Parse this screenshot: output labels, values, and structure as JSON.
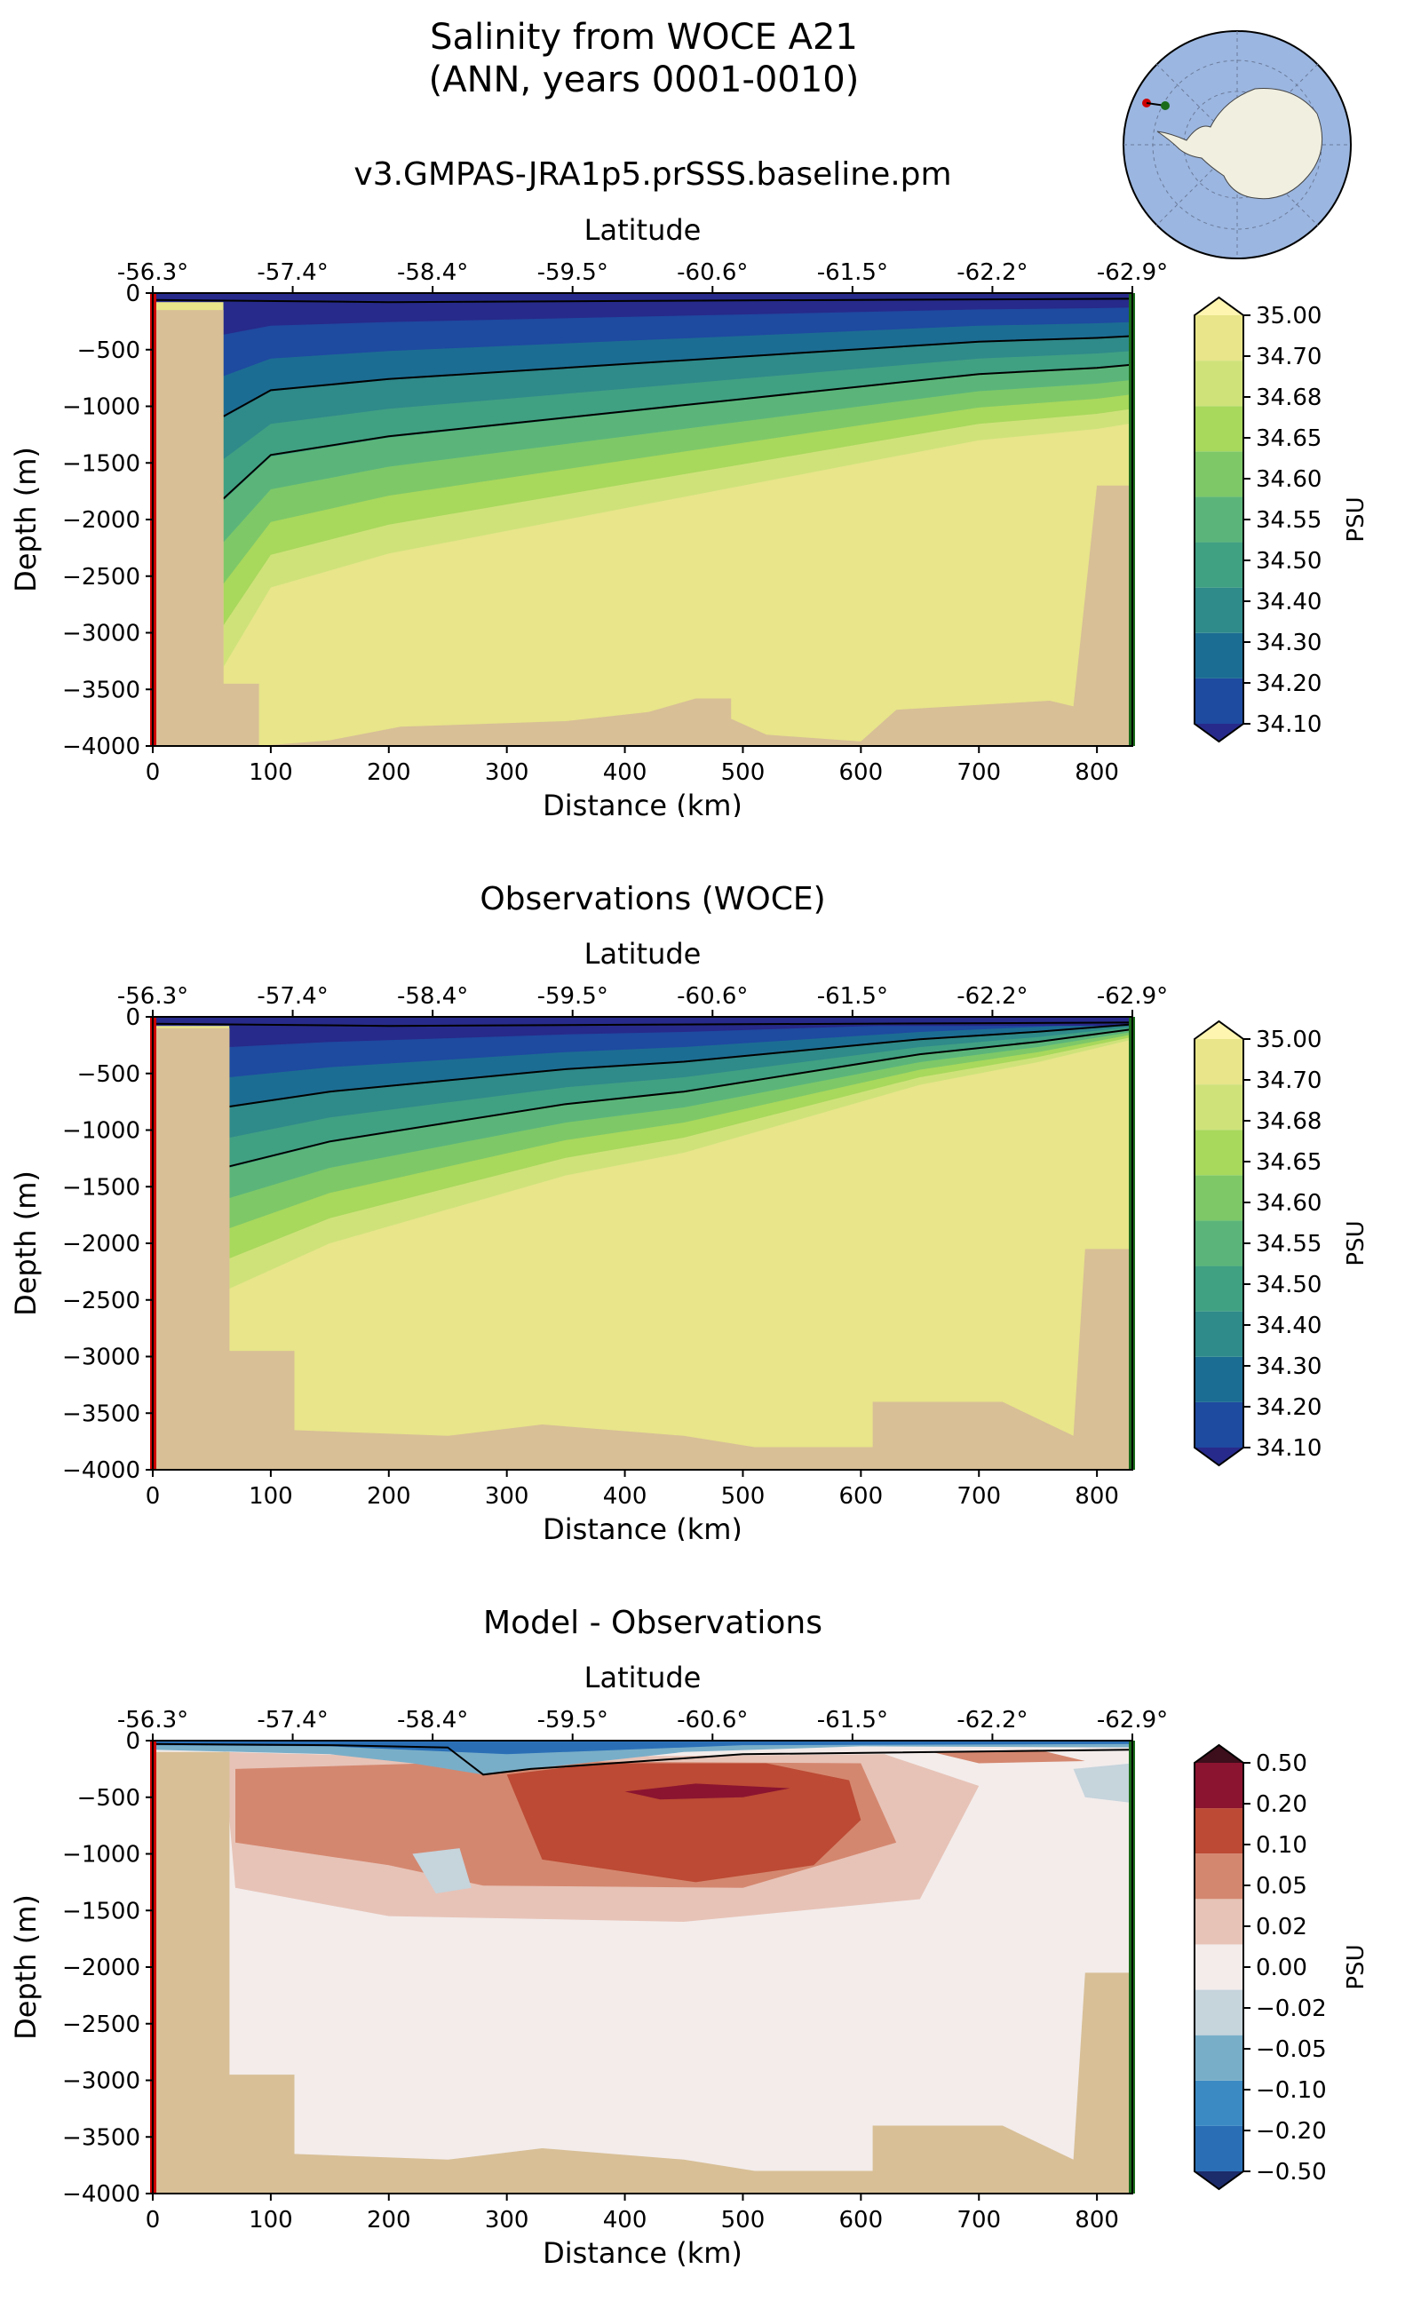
{
  "figure": {
    "title_line1": "Salinity from WOCE A21",
    "title_line2": "(ANN, years 0001-0010)"
  },
  "colors": {
    "land": "#d8bf96",
    "red_marker": "#cc0000",
    "green_marker": "#1a6b1a",
    "globe_ocean": "#9bb6e0",
    "globe_land": "#f0efe0"
  },
  "axes_common": {
    "top_label": "Latitude",
    "lat_ticks": [
      "-56.3°",
      "-57.4°",
      "-58.4°",
      "-59.5°",
      "-60.6°",
      "-61.5°",
      "-62.2°",
      "-62.9°"
    ],
    "x_ticks": [
      "0",
      "100",
      "200",
      "300",
      "400",
      "500",
      "600",
      "700",
      "800"
    ],
    "y_ticks": [
      "0",
      "−500",
      "−1000",
      "−1500",
      "−2000",
      "−2500",
      "−3000",
      "−3500",
      "−4000"
    ],
    "xlabel": "Distance (km)",
    "ylabel": "Depth (m)",
    "xlim": [
      0,
      830
    ],
    "ylim": [
      -4000,
      0
    ]
  },
  "chart_data": [
    {
      "type": "contourf",
      "title": "v3.GMPAS-JRA1p5.prSSS.baseline.pm",
      "colorbar_label": "PSU",
      "colorbar_ticks": [
        "35.00",
        "34.70",
        "34.68",
        "34.65",
        "34.60",
        "34.55",
        "34.50",
        "34.40",
        "34.30",
        "34.20",
        "34.10"
      ],
      "colorbar_colors": [
        "#272a8a",
        "#1e4aa0",
        "#1c6d93",
        "#2f8a8a",
        "#40a082",
        "#5bb57a",
        "#7ec868",
        "#a8d85c",
        "#cfe27a",
        "#e8e58a",
        "#fdf5b0"
      ],
      "contour_levels": [
        34.3,
        34.5
      ],
      "bathymetry_km_depth": [
        [
          0,
          -4000
        ],
        [
          0,
          -150
        ],
        [
          60,
          -150
        ],
        [
          60,
          -3450
        ],
        [
          90,
          -3450
        ],
        [
          90,
          -4000
        ],
        [
          150,
          -3950
        ],
        [
          210,
          -3830
        ],
        [
          350,
          -3780
        ],
        [
          420,
          -3700
        ],
        [
          460,
          -3580
        ],
        [
          490,
          -3580
        ],
        [
          490,
          -3760
        ],
        [
          520,
          -3900
        ],
        [
          600,
          -3960
        ],
        [
          630,
          -3680
        ],
        [
          760,
          -3600
        ],
        [
          780,
          -3650
        ],
        [
          800,
          -1700
        ],
        [
          830,
          -1700
        ],
        [
          830,
          -4000
        ]
      ],
      "profile_34p7_depth_by_km": [
        [
          60,
          -3300
        ],
        [
          100,
          -2600
        ],
        [
          200,
          -2300
        ],
        [
          300,
          -2100
        ],
        [
          400,
          -1900
        ],
        [
          500,
          -1700
        ],
        [
          600,
          -1500
        ],
        [
          700,
          -1300
        ],
        [
          800,
          -1200
        ],
        [
          830,
          -1150
        ]
      ]
    },
    {
      "type": "contourf",
      "title": "Observations (WOCE)",
      "colorbar_label": "PSU",
      "colorbar_ticks": [
        "35.00",
        "34.70",
        "34.68",
        "34.65",
        "34.60",
        "34.55",
        "34.50",
        "34.40",
        "34.30",
        "34.20",
        "34.10"
      ],
      "colorbar_colors": [
        "#272a8a",
        "#1e4aa0",
        "#1c6d93",
        "#2f8a8a",
        "#40a082",
        "#5bb57a",
        "#7ec868",
        "#a8d85c",
        "#cfe27a",
        "#e8e58a",
        "#fdf5b0"
      ],
      "contour_levels": [
        34.3,
        34.5
      ],
      "bathymetry_km_depth": [
        [
          0,
          -4000
        ],
        [
          0,
          -100
        ],
        [
          65,
          -100
        ],
        [
          65,
          -2950
        ],
        [
          120,
          -2950
        ],
        [
          120,
          -3650
        ],
        [
          250,
          -3700
        ],
        [
          330,
          -3600
        ],
        [
          450,
          -3700
        ],
        [
          510,
          -3800
        ],
        [
          610,
          -3800
        ],
        [
          610,
          -3400
        ],
        [
          720,
          -3400
        ],
        [
          780,
          -3700
        ],
        [
          790,
          -2050
        ],
        [
          830,
          -2050
        ],
        [
          830,
          -4000
        ]
      ],
      "profile_34p7_depth_by_km": [
        [
          65,
          -2400
        ],
        [
          150,
          -2000
        ],
        [
          250,
          -1700
        ],
        [
          350,
          -1400
        ],
        [
          450,
          -1200
        ],
        [
          550,
          -900
        ],
        [
          650,
          -600
        ],
        [
          750,
          -400
        ],
        [
          830,
          -200
        ]
      ]
    },
    {
      "type": "contourf",
      "title": "Model - Observations",
      "colorbar_label": "PSU",
      "colorbar_ticks": [
        "0.50",
        "0.20",
        "0.10",
        "0.05",
        "0.02",
        "0.00",
        "−0.02",
        "−0.05",
        "−0.10",
        "−0.20",
        "−0.50"
      ],
      "colorbar_colors": [
        "#1c2b6a",
        "#2a6fb6",
        "#3b8ac4",
        "#79aec8",
        "#c6d4dc",
        "#f3eceb",
        "#e7c3b7",
        "#d4876f",
        "#bc4a34",
        "#8b1430",
        "#3d0e1c"
      ],
      "contour_levels": [
        0.0
      ],
      "bathymetry_km_depth": [
        [
          0,
          -4000
        ],
        [
          0,
          -100
        ],
        [
          65,
          -100
        ],
        [
          65,
          -2950
        ],
        [
          120,
          -2950
        ],
        [
          120,
          -3650
        ],
        [
          250,
          -3700
        ],
        [
          330,
          -3600
        ],
        [
          450,
          -3700
        ],
        [
          510,
          -3800
        ],
        [
          610,
          -3800
        ],
        [
          610,
          -3400
        ],
        [
          720,
          -3400
        ],
        [
          780,
          -3700
        ],
        [
          790,
          -2050
        ],
        [
          830,
          -2050
        ],
        [
          830,
          -4000
        ]
      ],
      "anomaly_core_0p10_km_depth": [
        [
          300,
          -300
        ],
        [
          380,
          -200
        ],
        [
          520,
          -200
        ],
        [
          590,
          -350
        ],
        [
          600,
          -700
        ],
        [
          560,
          -1100
        ],
        [
          460,
          -1250
        ],
        [
          330,
          -1050
        ]
      ]
    }
  ]
}
